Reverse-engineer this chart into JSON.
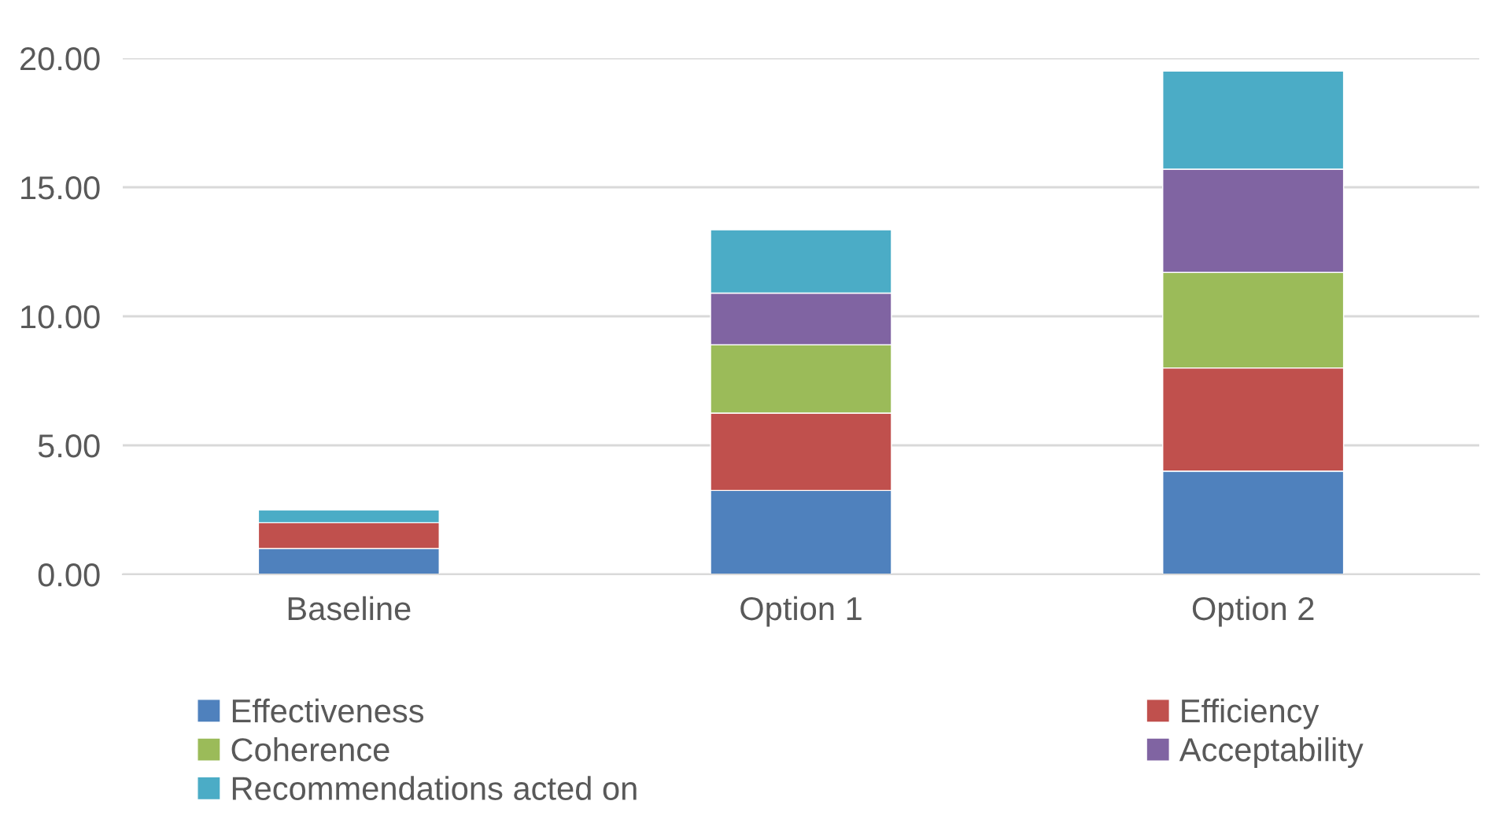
{
  "chart_data": {
    "type": "bar",
    "stacked": true,
    "categories": [
      "Baseline",
      "Option 1",
      "Option 2"
    ],
    "series": [
      {
        "name": "Effectiveness",
        "color": "#4f81bd",
        "values": [
          1.0,
          3.25,
          4.0
        ]
      },
      {
        "name": "Efficiency",
        "color": "#c0504d",
        "values": [
          1.0,
          3.0,
          4.0
        ]
      },
      {
        "name": "Coherence",
        "color": "#9bbb59",
        "values": [
          0,
          2.65,
          3.7
        ]
      },
      {
        "name": "Acceptability",
        "color": "#8064a2",
        "values": [
          0,
          2.0,
          4.0
        ]
      },
      {
        "name": "Recommendations acted on",
        "color": "#4bacc6",
        "values": [
          0.5,
          2.45,
          3.8
        ]
      }
    ],
    "ylim": [
      0,
      20
    ],
    "yticks": [
      {
        "value": 0,
        "label": "0.00"
      },
      {
        "value": 5,
        "label": "5.00"
      },
      {
        "value": 10,
        "label": "10.00"
      },
      {
        "value": 15,
        "label": "15.00"
      },
      {
        "value": 20,
        "label": "20.00"
      }
    ],
    "grid": "y",
    "legend": "bottom"
  }
}
